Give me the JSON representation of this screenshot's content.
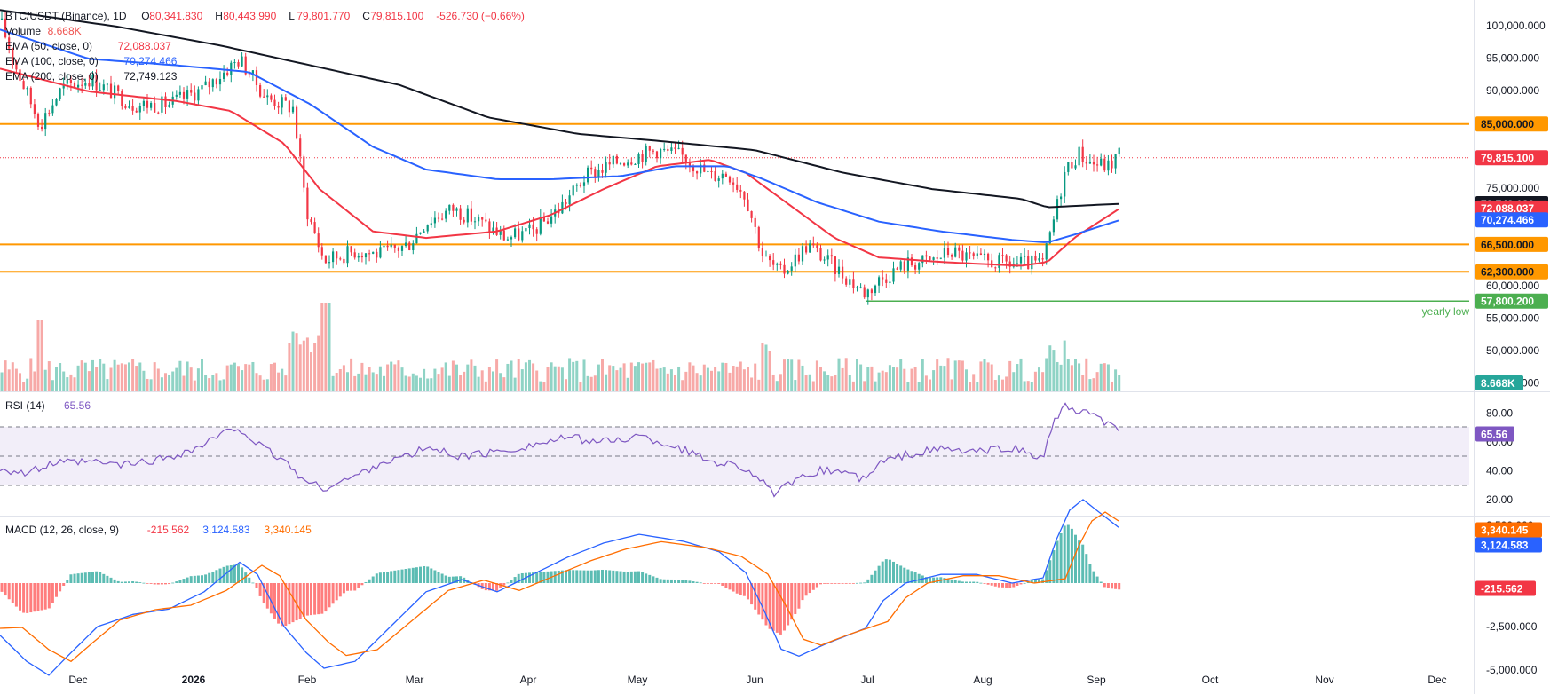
{
  "header": {
    "symbol": "BTC/USDT (Binance), 1D",
    "ohlc": [
      {
        "k": "O",
        "v": "80,341.830"
      },
      {
        "k": "H",
        "v": "80,443.990"
      },
      {
        "k": "L",
        "v": "79,801.770"
      },
      {
        "k": "C",
        "v": "79,815.100"
      }
    ],
    "change": "-526.730 (−0.66%)",
    "indicators": [
      {
        "label": "Volume",
        "value": "8.668K",
        "color": "#ef5350"
      },
      {
        "label": "EMA (50, close, 0)",
        "value": "72,088.037",
        "color": "#f23645"
      },
      {
        "label": "EMA (100, close, 0)",
        "value": "70,274.466",
        "color": "#2962ff"
      },
      {
        "label": "EMA (200, close, 0)",
        "value": "72,749.123",
        "color": "#131722"
      }
    ]
  },
  "price_axis": [
    "100,000.000",
    "95,000.000",
    "90,000.000",
    "75,000.000",
    "60,000.000",
    "55,000.000",
    "50,000.000",
    "45,000.000"
  ],
  "price_labels": [
    {
      "text": "85,000.000",
      "color": "#ff9800",
      "textColor": "#131722",
      "price": 85000
    },
    {
      "text": "79,815.100",
      "color": "#f23645",
      "textColor": "#ffffff",
      "price": 79815
    },
    {
      "text": "72,749.123",
      "color": "#131722",
      "textColor": "#ffffff",
      "price": 72749
    },
    {
      "text": "72,088.037",
      "color": "#f23645",
      "textColor": "#ffffff",
      "price": 72088
    },
    {
      "text": "70,274.466",
      "color": "#2962ff",
      "textColor": "#ffffff",
      "price": 70274
    },
    {
      "text": "66,500.000",
      "color": "#ff9800",
      "textColor": "#131722",
      "price": 66500
    },
    {
      "text": "62,300.000",
      "color": "#ff9800",
      "textColor": "#131722",
      "price": 62300
    },
    {
      "text": "57,800.200",
      "color": "#4caf50",
      "textColor": "#ffffff",
      "price": 57800
    },
    {
      "text": "8.668K",
      "color": "#26a69a",
      "textColor": "#ffffff",
      "price": 44200
    }
  ],
  "annotation": "yearly low",
  "rsi": {
    "label": "RSI (14)",
    "value": "65.56",
    "axis": [
      "80.00",
      "60.00",
      "40.00",
      "20.00"
    ]
  },
  "macd": {
    "label": "MACD (12, 26, close, 9)",
    "values": [
      {
        "v": "-215.562",
        "color": "#f23645"
      },
      {
        "v": "3,124.583",
        "color": "#2962ff"
      },
      {
        "v": "3,340.145",
        "color": "#ff6d00"
      }
    ],
    "axis": [
      "2,500.000",
      "-2,500.000",
      "-5,000.000"
    ]
  },
  "time_axis": [
    "Dec",
    "2026",
    "Feb",
    "Mar",
    "Apr",
    "May",
    "Jun",
    "Jul",
    "Aug",
    "Sep",
    "Oct",
    "Nov",
    "Dec"
  ],
  "chart_data": {
    "type": "line",
    "title": "BTC/USDT (Binance), 1D",
    "x": [
      "Dec",
      "2026",
      "Feb",
      "Mar",
      "Apr",
      "May",
      "Jun",
      "Jul",
      "Aug",
      "Sep"
    ],
    "series": [
      {
        "name": "EMA (50, close, 0)",
        "values": [
          93500,
          90000,
          86000,
          68000,
          71000,
          79000,
          74000,
          64000,
          63000,
          72088
        ]
      },
      {
        "name": "EMA (100, close, 0)",
        "values": [
          99000,
          95000,
          92000,
          79000,
          77000,
          77500,
          75000,
          68500,
          66500,
          70274
        ]
      },
      {
        "name": "EMA (200, close, 0)",
        "values": [
          101000,
          99000,
          96000,
          88000,
          83000,
          81500,
          80000,
          76500,
          73500,
          72749
        ]
      }
    ],
    "ylim": [
      44000,
      102000
    ],
    "horizontal_levels": [
      85000,
      66500,
      62300,
      57800
    ],
    "last_price": 79815.1,
    "rsi_last": 65.56,
    "macd_last": {
      "macd": 3124.583,
      "signal": 3340.145,
      "histogram": -215.562
    }
  }
}
